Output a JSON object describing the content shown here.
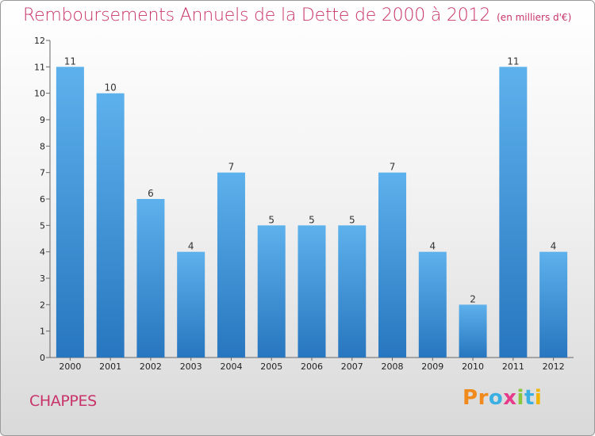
{
  "chart_data": {
    "type": "bar",
    "title": "Remboursements Annuels de la Dette de 2000 à 2012",
    "unit": "(en milliers d'€)",
    "categories": [
      "2000",
      "2001",
      "2002",
      "2003",
      "2004",
      "2005",
      "2006",
      "2007",
      "2008",
      "2009",
      "2010",
      "2011",
      "2012"
    ],
    "values": [
      11,
      10,
      6,
      4,
      7,
      5,
      5,
      5,
      7,
      4,
      2,
      11,
      4
    ],
    "data_labels": [
      "11",
      "10",
      "6",
      "4",
      "7",
      "5",
      "5",
      "5",
      "7",
      "4",
      "2",
      "11",
      "4"
    ],
    "yticks": [
      "0",
      "1",
      "2",
      "3",
      "4",
      "5",
      "6",
      "7",
      "8",
      "9",
      "10",
      "11",
      "12"
    ],
    "ylim": [
      0,
      12
    ],
    "grid": false,
    "bar_color": "#3a8fd8"
  },
  "footer": {
    "city": "CHAPPES",
    "logo": {
      "letters": [
        "P",
        "r",
        "o",
        "x",
        "i",
        "t",
        "i"
      ],
      "colors": [
        "#f08a1c",
        "#f08a1c",
        "#3ab0e2",
        "#e63b8a",
        "#8cc63f",
        "#3ab0e2",
        "#f0b400"
      ]
    }
  },
  "colors": {
    "title": "#c8336a",
    "city": "#c8336a"
  }
}
